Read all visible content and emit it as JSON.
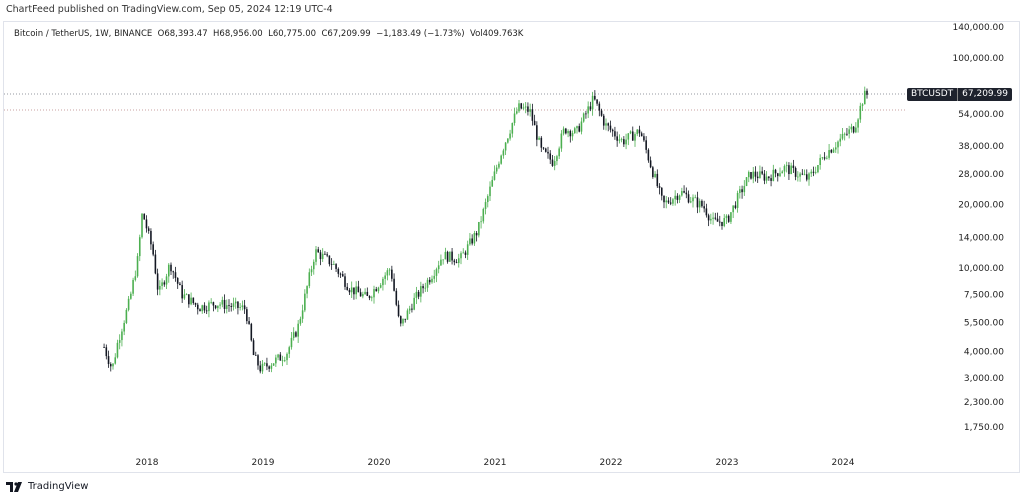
{
  "header": {
    "published": "ChartFeed published on TradingView.com, Sep 05, 2024 12:19 UTC-4"
  },
  "legend": {
    "symbol": "Bitcoin / TetherUS, 1W, BINANCE",
    "open": "O68,393.47",
    "high": "H68,956.00",
    "low": "L60,775.00",
    "close": "C67,209.99",
    "change": "−1,183.49 (−1.73%)",
    "volume": "Vol409.763K"
  },
  "price_tag": {
    "symbol": "BTCUSDT",
    "price": "67,209.99"
  },
  "footer": {
    "brand": "TradingView"
  },
  "colors": {
    "up": "#4caf50",
    "down": "#131722"
  },
  "chart_data": {
    "type": "candlestick",
    "scale": "log",
    "interval": "1W",
    "y_ticks": [
      140000,
      100000,
      54000,
      38000,
      28000,
      20000,
      14000,
      10000,
      7500,
      5500,
      4000,
      3000,
      2300,
      1750
    ],
    "y_tick_labels": [
      "140,000.00",
      "100,000.00",
      "54,000.00",
      "38,000.00",
      "28,000.00",
      "20,000.00",
      "14,000.00",
      "10,000.00",
      "7,500.00",
      "5,500.00",
      "4,000.00",
      "3,000.00",
      "2,300.00",
      "1,750.00"
    ],
    "x_ticks": [
      "2018",
      "2019",
      "2020",
      "2021",
      "2022",
      "2023",
      "2024"
    ],
    "last_close": 67209.99,
    "approx_close_path": [
      [
        2017.63,
        4200
      ],
      [
        2017.7,
        3300
      ],
      [
        2017.75,
        4500
      ],
      [
        2017.85,
        7000
      ],
      [
        2017.92,
        11000
      ],
      [
        2017.96,
        18500
      ],
      [
        2018.05,
        12000
      ],
      [
        2018.1,
        7500
      ],
      [
        2018.2,
        10500
      ],
      [
        2018.3,
        7500
      ],
      [
        2018.45,
        6500
      ],
      [
        2018.6,
        6800
      ],
      [
        2018.85,
        6400
      ],
      [
        2018.92,
        3800
      ],
      [
        2018.98,
        3300
      ],
      [
        2019.2,
        3900
      ],
      [
        2019.3,
        5200
      ],
      [
        2019.45,
        12000
      ],
      [
        2019.6,
        10500
      ],
      [
        2019.75,
        8000
      ],
      [
        2019.9,
        7200
      ],
      [
        2020.1,
        10000
      ],
      [
        2020.18,
        5200
      ],
      [
        2020.3,
        7000
      ],
      [
        2020.45,
        9200
      ],
      [
        2020.55,
        11500
      ],
      [
        2020.7,
        11000
      ],
      [
        2020.85,
        15000
      ],
      [
        2020.95,
        23000
      ],
      [
        2021.05,
        35000
      ],
      [
        2021.2,
        58000
      ],
      [
        2021.3,
        56000
      ],
      [
        2021.4,
        36000
      ],
      [
        2021.5,
        32000
      ],
      [
        2021.6,
        46000
      ],
      [
        2021.7,
        44000
      ],
      [
        2021.85,
        64000
      ],
      [
        2021.95,
        48000
      ],
      [
        2022.1,
        40000
      ],
      [
        2022.25,
        45000
      ],
      [
        2022.35,
        30000
      ],
      [
        2022.45,
        20000
      ],
      [
        2022.6,
        23000
      ],
      [
        2022.8,
        19500
      ],
      [
        2022.88,
        16500
      ],
      [
        2023.0,
        16800
      ],
      [
        2023.1,
        22000
      ],
      [
        2023.2,
        28000
      ],
      [
        2023.35,
        27000
      ],
      [
        2023.5,
        30000
      ],
      [
        2023.7,
        26500
      ],
      [
        2023.85,
        35000
      ],
      [
        2024.0,
        42000
      ],
      [
        2024.1,
        47000
      ],
      [
        2024.18,
        66000
      ],
      [
        2024.22,
        67210
      ]
    ]
  }
}
